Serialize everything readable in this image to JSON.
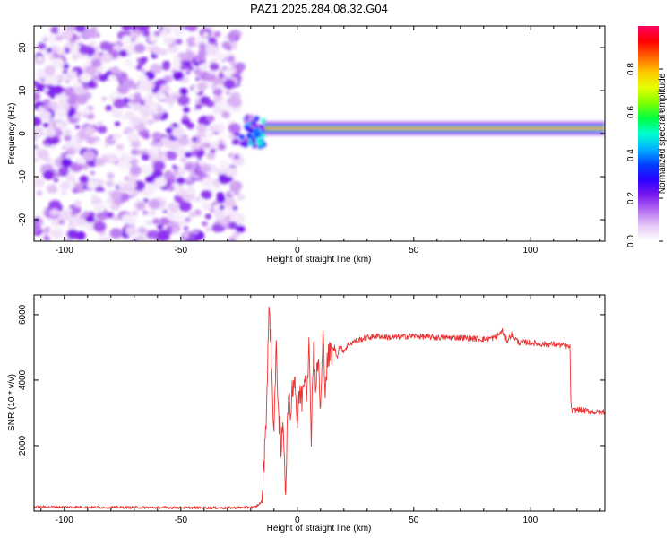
{
  "figure": {
    "title": "PAZ1.2025.284.08.32.G04"
  },
  "chart_data": [
    {
      "type": "heatmap",
      "name": "spectrogram",
      "xlabel": "Height of straight line (km)",
      "ylabel": "Frequency (Hz)",
      "xlim": [
        -113,
        132
      ],
      "ylim": [
        -25,
        25
      ],
      "xticks": [
        -100,
        -50,
        0,
        50,
        100
      ],
      "yticks": [
        -20,
        -10,
        0,
        10,
        20
      ],
      "colorbar": {
        "label": "Normalized spectral amplitude",
        "range": [
          0.0,
          1.0
        ],
        "ticks": [
          0.0,
          0.2,
          0.4,
          0.6,
          0.8
        ],
        "tick_labels": [
          "0.0",
          "0.2",
          "0.4",
          "0.6",
          "0.8"
        ],
        "colormap": [
          "#ffffff",
          "#e6c9f5",
          "#b470f0",
          "#7b18ee",
          "#2a00ff",
          "#0040ff",
          "#00b4ff",
          "#00ffd0",
          "#00ff40",
          "#80ff00",
          "#e6ff00",
          "#ffc800",
          "#ff6400",
          "#ff0000",
          "#ff0064"
        ]
      },
      "regions": [
        {
          "description": "diffuse noise",
          "x_range": [
            -113,
            -24
          ],
          "y_range": [
            -25,
            25
          ],
          "amplitude_range": [
            0.0,
            0.2
          ]
        },
        {
          "description": "signal onset blob",
          "x_range": [
            -24,
            -14
          ],
          "y_range": [
            -3,
            4
          ],
          "amplitude_range": [
            0.1,
            0.5
          ]
        },
        {
          "description": "carrier line",
          "x_range": [
            -14,
            132
          ],
          "freq_hz": 1.2,
          "amplitude_range": [
            0.6,
            1.0
          ]
        }
      ]
    },
    {
      "type": "line",
      "name": "snr",
      "xlabel": "Height of straight line (km)",
      "ylabel": "SNR (10 * v/v)",
      "xlim": [
        -113,
        132
      ],
      "ylim": [
        0,
        6600
      ],
      "xticks": [
        -100,
        -50,
        0,
        50,
        100
      ],
      "yticks": [
        2000,
        4000,
        6000
      ],
      "color": "#ee3333",
      "series": [
        {
          "name": "SNR",
          "x": [
            -113,
            -90,
            -60,
            -30,
            -18,
            -15,
            -14,
            -13,
            -12,
            -11,
            -10,
            -9,
            -8,
            -7,
            -6,
            -5,
            -4,
            -3,
            -2,
            -1,
            0,
            1,
            2,
            3,
            4,
            5,
            6,
            7,
            8,
            9,
            10,
            11,
            12,
            13,
            14,
            15,
            16,
            17,
            18,
            20,
            22,
            25,
            30,
            35,
            40,
            50,
            60,
            70,
            80,
            85,
            88,
            90,
            92,
            95,
            100,
            105,
            110,
            115,
            117,
            117.5,
            118,
            120,
            125,
            130,
            132
          ],
          "values": [
            130,
            120,
            110,
            100,
            120,
            300,
            2000,
            3600,
            6500,
            4200,
            2500,
            5000,
            3000,
            1800,
            2700,
            600,
            3400,
            3000,
            3900,
            4100,
            2600,
            3700,
            3400,
            4300,
            3800,
            5000,
            2400,
            5200,
            3700,
            4700,
            3000,
            5300,
            3900,
            4600,
            4800,
            4900,
            5000,
            4700,
            5000,
            4900,
            5100,
            5200,
            5300,
            5350,
            5300,
            5350,
            5300,
            5300,
            5250,
            5300,
            5500,
            5200,
            5400,
            5150,
            5150,
            5100,
            5100,
            5050,
            5000,
            3100,
            3050,
            3100,
            3050,
            3000,
            3050
          ]
        }
      ]
    }
  ]
}
